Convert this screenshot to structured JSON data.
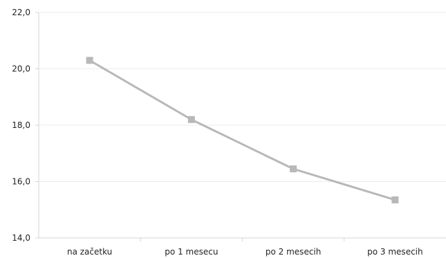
{
  "chart_data": {
    "type": "line",
    "title": "",
    "xlabel": "",
    "ylabel": "",
    "categories": [
      "na začetku",
      "po 1 mesecu",
      "po 2 mesecih",
      "po 3 mesecih"
    ],
    "series": [
      {
        "values": [
          20.3,
          18.2,
          16.45,
          15.35
        ],
        "color": "#b8b8b8"
      }
    ],
    "ylim": [
      14.0,
      22.0
    ],
    "yticks": [
      "14,0",
      "16,0",
      "18,0",
      "20,0",
      "22,0"
    ],
    "ytick_values": [
      14,
      16,
      18,
      20,
      22
    ],
    "grid": true,
    "legend": "none",
    "marker": "square"
  }
}
